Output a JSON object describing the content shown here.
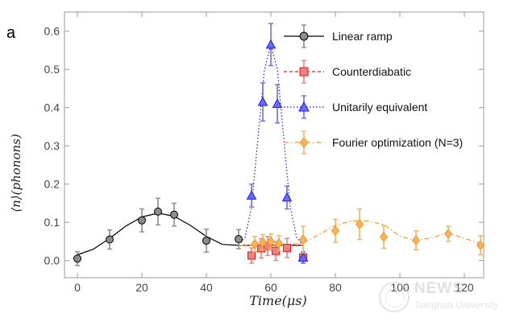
{
  "panel_label": "a",
  "watermark": {
    "title": "NEWS",
    "subtitle": "Tsinghua University"
  },
  "chart_data": {
    "type": "scatter",
    "xlabel": "Time(μs)",
    "ylabel": "⟨n⟩(phonons)",
    "xlim": [
      -4,
      126
    ],
    "ylim": [
      -0.045,
      0.65
    ],
    "xticks": [
      0,
      20,
      40,
      60,
      80,
      100,
      120
    ],
    "yticks": [
      0.0,
      0.1,
      0.2,
      0.3,
      0.4,
      0.5,
      0.6
    ],
    "ytick_labels": [
      "0.0",
      "0.1",
      "0.2",
      "0.3",
      "0.4",
      "0.5",
      "0.6"
    ],
    "legend_position": "top-right",
    "series": [
      {
        "name": "Linear ramp",
        "color": "#000000",
        "fill": "#8c8c8c",
        "marker": "circle",
        "line_style": "solid",
        "x": [
          0,
          10,
          20,
          25,
          30,
          40,
          50
        ],
        "y": [
          0.005,
          0.055,
          0.105,
          0.128,
          0.12,
          0.052,
          0.056
        ],
        "err": [
          0.018,
          0.025,
          0.03,
          0.035,
          0.03,
          0.03,
          0.025
        ],
        "curve_x": [
          0,
          5,
          10,
          15,
          20,
          25,
          30,
          35,
          40,
          45,
          50,
          55,
          70
        ],
        "curve_y": [
          0.015,
          0.03,
          0.058,
          0.09,
          0.114,
          0.124,
          0.116,
          0.092,
          0.063,
          0.042,
          0.04,
          0.04,
          0.04
        ]
      },
      {
        "name": "Counterdiabatic",
        "color": "#e8191f",
        "fill": "#f08080",
        "marker": "square",
        "line_style": "dashed",
        "x": [
          54,
          57,
          59,
          61.5,
          65,
          70
        ],
        "y": [
          0.013,
          0.032,
          0.038,
          0.025,
          0.033,
          0.008
        ],
        "err": [
          0.02,
          0.025,
          0.025,
          0.025,
          0.025,
          0.015
        ],
        "curve_x": [
          50,
          70
        ],
        "curve_y": [
          0.04,
          0.04
        ]
      },
      {
        "name": "Unitarily equivalent",
        "color": "#1a1aff",
        "fill": "#6a6aff",
        "marker": "triangle",
        "line_style": "dotted",
        "x": [
          54,
          57.5,
          60,
          62,
          65,
          70
        ],
        "y": [
          0.17,
          0.415,
          0.565,
          0.41,
          0.165,
          0.008
        ],
        "err": [
          0.03,
          0.05,
          0.055,
          0.05,
          0.03,
          0.015
        ],
        "curve_x": [
          50,
          52,
          54,
          56,
          58,
          60,
          62,
          64,
          66,
          68,
          70
        ],
        "curve_y": [
          0.04,
          0.06,
          0.14,
          0.32,
          0.5,
          0.565,
          0.5,
          0.32,
          0.14,
          0.06,
          0.04
        ]
      },
      {
        "name": "Fourier optimization (N=3)",
        "color": "#f39a1e",
        "fill": "#f7b25c",
        "marker": "diamond",
        "line_style": "dashdot",
        "x": [
          55,
          57.5,
          60,
          62.5,
          70,
          80,
          87.5,
          95,
          105,
          115,
          125
        ],
        "y": [
          0.043,
          0.048,
          0.05,
          0.045,
          0.055,
          0.078,
          0.095,
          0.062,
          0.053,
          0.07,
          0.04
        ],
        "err": [
          0.02,
          0.02,
          0.02,
          0.02,
          0.035,
          0.03,
          0.04,
          0.03,
          0.025,
          0.02,
          0.025
        ],
        "curve_x": [
          50,
          55,
          60,
          65,
          70,
          75,
          80,
          85,
          90,
          95,
          100,
          105,
          110,
          115,
          120,
          125
        ],
        "curve_y": [
          0.04,
          0.04,
          0.042,
          0.04,
          0.046,
          0.068,
          0.092,
          0.104,
          0.104,
          0.094,
          0.064,
          0.052,
          0.06,
          0.072,
          0.058,
          0.045
        ]
      }
    ]
  }
}
